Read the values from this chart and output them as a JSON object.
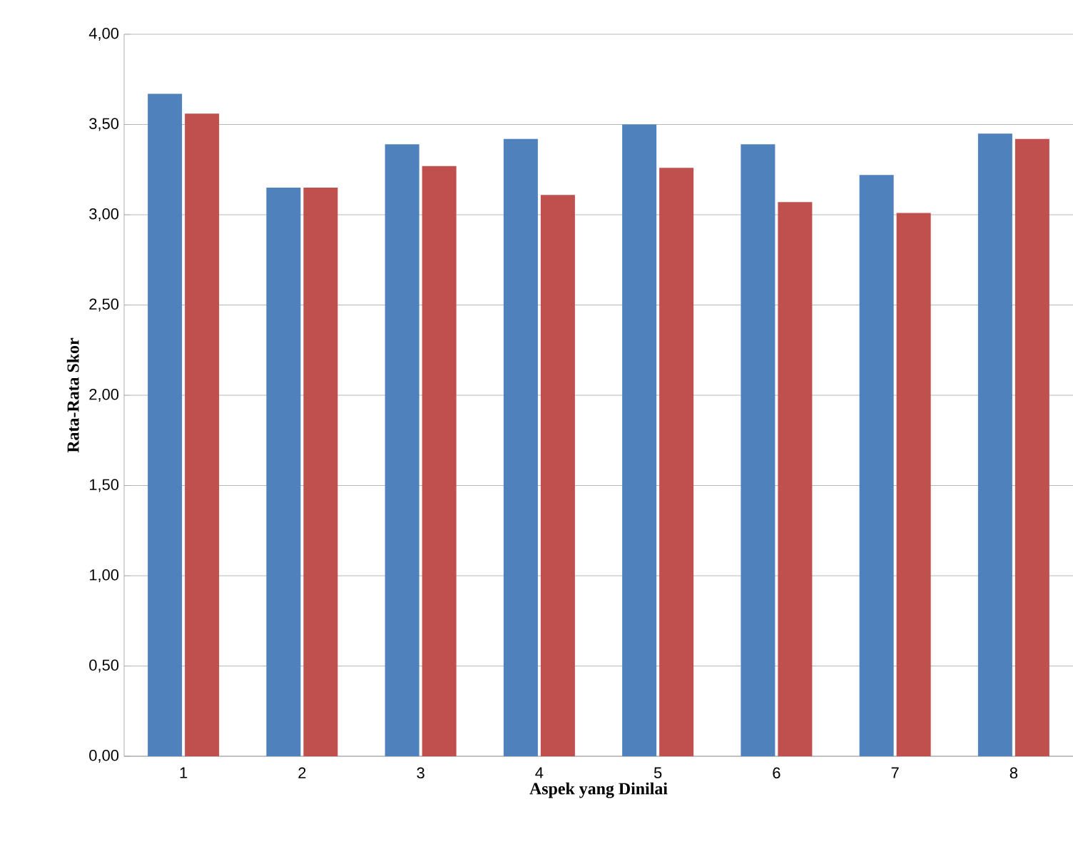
{
  "chart_data": {
    "type": "bar",
    "xlabel": "Aspek yang Dinilai",
    "ylabel": "Rata-Rata Skor",
    "categories": [
      "1",
      "2",
      "3",
      "4",
      "5",
      "6",
      "7",
      "8"
    ],
    "series": [
      {
        "color": "#4f81bd",
        "values": [
          3.67,
          3.15,
          3.39,
          3.42,
          3.5,
          3.39,
          3.22,
          3.45
        ]
      },
      {
        "color": "#c0504d",
        "values": [
          3.56,
          3.15,
          3.27,
          3.11,
          3.26,
          3.07,
          3.01,
          3.42
        ]
      }
    ],
    "ylim": [
      0,
      4
    ],
    "yticks": [
      {
        "value": 0,
        "label": "0,00"
      },
      {
        "value": 0.5,
        "label": "0,50"
      },
      {
        "value": 1,
        "label": "1,00"
      },
      {
        "value": 1.5,
        "label": "1,50"
      },
      {
        "value": 2,
        "label": "2,00"
      },
      {
        "value": 2.5,
        "label": "2,50"
      },
      {
        "value": 3,
        "label": "3,00"
      },
      {
        "value": 3.5,
        "label": "3,50"
      },
      {
        "value": 4,
        "label": "4,00"
      }
    ],
    "grid": "y"
  }
}
